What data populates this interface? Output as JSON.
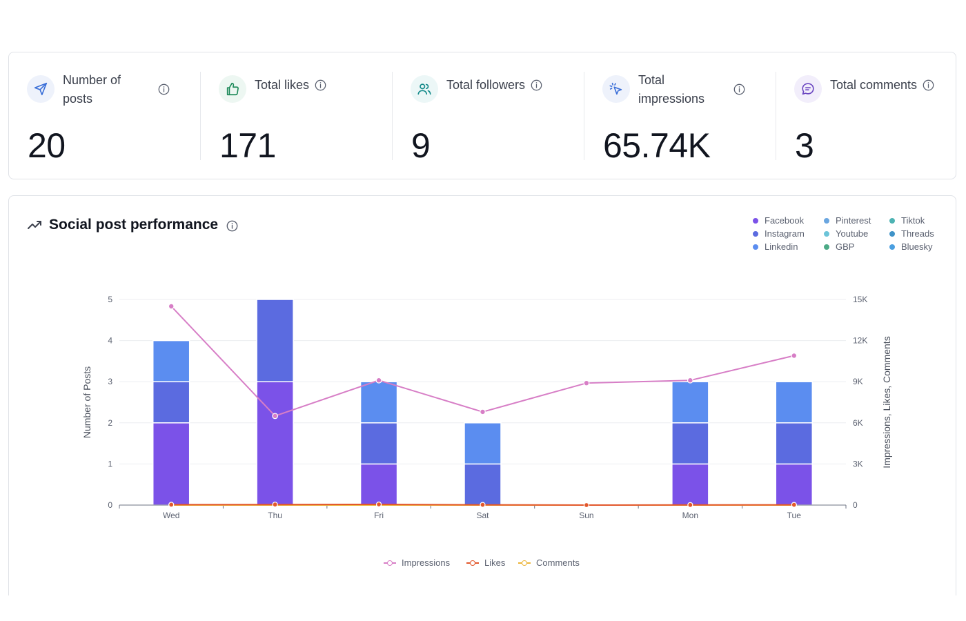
{
  "stats": [
    {
      "id": "posts",
      "label_lines": [
        "Number of",
        "posts"
      ],
      "value": "20",
      "icon": "send-icon",
      "icon_color": "#3b6fd8",
      "icon_bg": "#eef2fb"
    },
    {
      "id": "likes",
      "label_lines": [
        "Total likes"
      ],
      "value": "171",
      "icon": "thumbs-up-icon",
      "icon_color": "#1e8a5a",
      "icon_bg": "#edf7f2"
    },
    {
      "id": "followers",
      "label_lines": [
        "Total followers"
      ],
      "value": "9",
      "icon": "users-icon",
      "icon_color": "#138a8a",
      "icon_bg": "#ecf7f7"
    },
    {
      "id": "impressions",
      "label_lines": [
        "Total",
        "impressions"
      ],
      "value": "65.74K",
      "icon": "cursor-click-icon",
      "icon_color": "#3b6fd8",
      "icon_bg": "#eef2fb"
    },
    {
      "id": "comments",
      "label_lines": [
        "Total comments"
      ],
      "value": "3",
      "icon": "message-icon",
      "icon_color": "#6b46c1",
      "icon_bg": "#f2eefb"
    }
  ],
  "chart_section": {
    "title": "Social post performance",
    "legend_platforms": [
      {
        "name": "Facebook",
        "color": "#7b52e8"
      },
      {
        "name": "Instagram",
        "color": "#5b6be0"
      },
      {
        "name": "Linkedin",
        "color": "#5b8df0"
      },
      {
        "name": "Pinterest",
        "color": "#6aa6e0"
      },
      {
        "name": "Youtube",
        "color": "#6cc4d8"
      },
      {
        "name": "GBP",
        "color": "#4caa86"
      },
      {
        "name": "Tiktok",
        "color": "#4db3b3"
      },
      {
        "name": "Threads",
        "color": "#3f93c8"
      },
      {
        "name": "Bluesky",
        "color": "#4a9fe0"
      }
    ],
    "legend_lines": [
      {
        "name": "Impressions",
        "color": "#d77ec6"
      },
      {
        "name": "Likes",
        "color": "#e2572b"
      },
      {
        "name": "Comments",
        "color": "#ecb53a"
      }
    ]
  },
  "chart_data": {
    "type": "bar",
    "categories": [
      "Wed",
      "Thu",
      "Fri",
      "Sat",
      "Sun",
      "Mon",
      "Tue"
    ],
    "series": [
      {
        "name": "Facebook",
        "axis": "left",
        "stack": true,
        "values": [
          2,
          3,
          1,
          0,
          0,
          1,
          1
        ]
      },
      {
        "name": "Instagram",
        "axis": "left",
        "stack": true,
        "values": [
          1,
          2,
          1,
          1,
          0,
          1,
          1
        ]
      },
      {
        "name": "Linkedin",
        "axis": "left",
        "stack": true,
        "values": [
          1,
          0,
          1,
          1,
          0,
          1,
          1
        ]
      },
      {
        "name": "Impressions",
        "axis": "right",
        "type": "line",
        "values": [
          14500,
          6500,
          9100,
          6800,
          8900,
          9100,
          10900
        ]
      },
      {
        "name": "Likes",
        "axis": "right",
        "type": "line",
        "values": [
          30,
          40,
          50,
          20,
          0,
          10,
          20
        ]
      },
      {
        "name": "Comments",
        "axis": "right",
        "type": "line",
        "values": [
          0,
          1,
          1,
          0,
          0,
          1,
          0
        ]
      }
    ],
    "ylabel": "Number of Posts",
    "y2label": "Impressions, Likes, Comments",
    "ylim": [
      0,
      5
    ],
    "y2lim": [
      0,
      15000
    ],
    "y_ticks": [
      "0",
      "1",
      "2",
      "3",
      "4",
      "5"
    ],
    "y2_ticks": [
      "0",
      "3K",
      "6K",
      "9K",
      "12K",
      "15K"
    ],
    "grid": true,
    "legend_position": "top-right and bottom"
  }
}
